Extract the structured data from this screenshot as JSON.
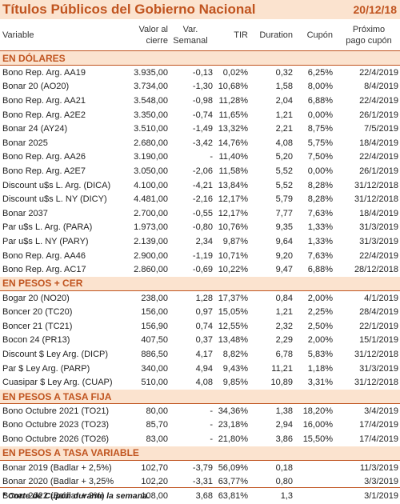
{
  "title": "Títulos Públicos del Gobierno Nacional",
  "date": "20/12/18",
  "headers": {
    "variable": "Variable",
    "valor_line1": "Valor al",
    "valor_line2": "cierre",
    "var_line1": "Var.",
    "var_line2": "Semanal",
    "tir": "TIR",
    "duration": "Duration",
    "cupon": "Cupón",
    "prox_line1": "Próximo",
    "prox_line2": "pago cupón"
  },
  "sections": [
    {
      "title": "EN DÓLARES",
      "rows": [
        [
          "Bono Rep. Arg. AA19",
          "3.935,00",
          "-0,13",
          "0,02%",
          "0,32",
          "6,25%",
          "22/4/2019"
        ],
        [
          "Bonar 20 (AO20)",
          "3.734,00",
          "-1,30",
          "10,68%",
          "1,58",
          "8,00%",
          "8/4/2019"
        ],
        [
          "Bono Rep. Arg. AA21",
          "3.548,00",
          "-0,98",
          "11,28%",
          "2,04",
          "6,88%",
          "22/4/2019"
        ],
        [
          "Bono Rep. Arg. A2E2",
          "3.350,00",
          "-0,74",
          "11,65%",
          "1,21",
          "0,00%",
          "26/1/2019"
        ],
        [
          "Bonar 24 (AY24)",
          "3.510,00",
          "-1,49",
          "13,32%",
          "2,21",
          "8,75%",
          "7/5/2019"
        ],
        [
          "Bonar 2025",
          "2.680,00",
          "-3,42",
          "14,76%",
          "4,08",
          "5,75%",
          "18/4/2019"
        ],
        [
          "Bono Rep. Arg. AA26",
          "3.190,00",
          "-",
          "11,40%",
          "5,20",
          "7,50%",
          "22/4/2019"
        ],
        [
          "Bono Rep. Arg. A2E7",
          "3.050,00",
          "-2,06",
          "11,58%",
          "5,52",
          "0,00%",
          "26/1/2019"
        ],
        [
          "Discount u$s L. Arg. (DICA)",
          "4.100,00",
          "-4,21",
          "13,84%",
          "5,52",
          "8,28%",
          "31/12/2018"
        ],
        [
          "Discount u$s L. NY (DICY)",
          "4.481,00",
          "-2,16",
          "12,17%",
          "5,79",
          "8,28%",
          "31/12/2018"
        ],
        [
          "Bonar 2037",
          "2.700,00",
          "-0,55",
          "12,17%",
          "7,77",
          "7,63%",
          "18/4/2019"
        ],
        [
          "Par u$s L. Arg. (PARA)",
          "1.973,00",
          "-0,80",
          "10,76%",
          "9,35",
          "1,33%",
          "31/3/2019"
        ],
        [
          "Par u$s L. NY (PARY)",
          "2.139,00",
          "2,34",
          "9,87%",
          "9,64",
          "1,33%",
          "31/3/2019"
        ],
        [
          "Bono Rep. Arg. AA46",
          "2.900,00",
          "-1,19",
          "10,71%",
          "9,20",
          "7,63%",
          "22/4/2019"
        ],
        [
          "Bono Rep. Arg. AC17",
          "2.860,00",
          "-0,69",
          "10,22%",
          "9,47",
          "6,88%",
          "28/12/2018"
        ]
      ]
    },
    {
      "title": "EN PESOS + CER",
      "rows": [
        [
          "Bogar 20 (NO20)",
          "238,00",
          "1,28",
          "17,37%",
          "0,84",
          "2,00%",
          "4/1/2019"
        ],
        [
          "Boncer 20 (TC20)",
          "156,00",
          "0,97",
          "15,05%",
          "1,21",
          "2,25%",
          "28/4/2019"
        ],
        [
          "Boncer 21 (TC21)",
          "156,90",
          "0,74",
          "12,55%",
          "2,32",
          "2,50%",
          "22/1/2019"
        ],
        [
          "Bocon 24 (PR13)",
          "407,50",
          "0,37",
          "13,48%",
          "2,29",
          "2,00%",
          "15/1/2019"
        ],
        [
          "Discount $ Ley Arg. (DICP)",
          "886,50",
          "4,17",
          "8,82%",
          "6,78",
          "5,83%",
          "31/12/2018"
        ],
        [
          "Par $ Ley Arg. (PARP)",
          "340,00",
          "4,94",
          "9,43%",
          "11,21",
          "1,18%",
          "31/3/2019"
        ],
        [
          "Cuasipar $ Ley Arg. (CUAP)",
          "510,00",
          "4,08",
          "9,85%",
          "10,89",
          "3,31%",
          "31/12/2018"
        ]
      ]
    },
    {
      "title": "EN PESOS A TASA FIJA",
      "rows": [
        [
          "Bono Octubre 2021 (TO21)",
          "80,00",
          "-",
          "34,36%",
          "1,38",
          "18,20%",
          "3/4/2019"
        ],
        [
          "Bono Octubre 2023 (TO23)",
          "85,70",
          "-",
          "23,18%",
          "2,94",
          "16,00%",
          "17/4/2019"
        ],
        [
          "Bono Octubre 2026 (TO26)",
          "83,00",
          "-",
          "21,80%",
          "3,86",
          "15,50%",
          "17/4/2019"
        ]
      ]
    },
    {
      "title": "EN PESOS A TASA VARIABLE",
      "rows": [
        [
          "Bonar 2019 (Badlar + 2,5%)",
          "102,70",
          "-3,79",
          "56,09%",
          "0,18",
          "",
          "11/3/2019"
        ],
        [
          "Bonar 2020 (Badlar + 3,25%",
          "102,20",
          "-3,31",
          "63,77%",
          "0,80",
          "",
          "3/3/2019"
        ],
        [
          "Bonar 2022 (Badlar + 2%)",
          "108,00",
          "3,68",
          "63,81%",
          "1,3",
          "",
          "3/1/2019"
        ]
      ]
    }
  ],
  "footnote": "* Corte de Cupón durante la semana."
}
